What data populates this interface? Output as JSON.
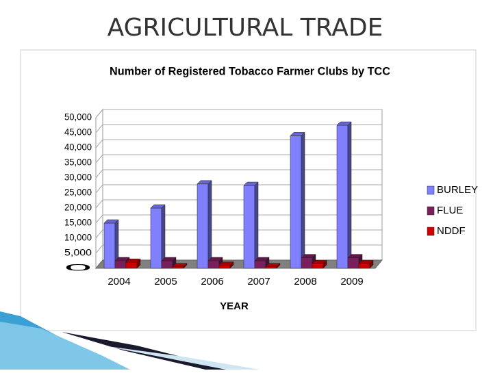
{
  "page": {
    "title": "AGRICULTURAL TRADE"
  },
  "chart_data": {
    "type": "bar3d",
    "title": "Number of Registered Tobacco Farmer Clubs by TCC",
    "x_label": "YEAR",
    "categories": [
      "2004",
      "2005",
      "2006",
      "2007",
      "2008",
      "2009"
    ],
    "series": [
      {
        "name": "BURLEY",
        "color": "#8080ff",
        "values": [
          15000,
          20000,
          28000,
          27500,
          44000,
          47500
        ]
      },
      {
        "name": "FLUE",
        "color": "#7a1f5c",
        "values": [
          2500,
          2500,
          2500,
          2500,
          3500,
          3500
        ]
      },
      {
        "name": "NDDF",
        "color": "#d00000",
        "values": [
          2000,
          500,
          1000,
          500,
          1500,
          1500
        ]
      }
    ],
    "ylim": [
      0,
      50000
    ],
    "yticks": [
      0,
      {
        "value": 5000,
        "label": "5,000"
      },
      {
        "value": 10000,
        "label": "10,000"
      },
      {
        "value": 15000,
        "label": "15,000"
      },
      {
        "value": 20000,
        "label": "20,000"
      },
      {
        "value": 25000,
        "label": "25,000"
      },
      {
        "value": 30000,
        "label": "30,000"
      },
      {
        "value": 35000,
        "label": "35,000"
      },
      {
        "value": 40000,
        "label": "40,000"
      },
      {
        "value": 45000,
        "label": "45,000"
      },
      {
        "value": 50000,
        "label": "50,000"
      }
    ],
    "grid": true,
    "legend": "right"
  }
}
